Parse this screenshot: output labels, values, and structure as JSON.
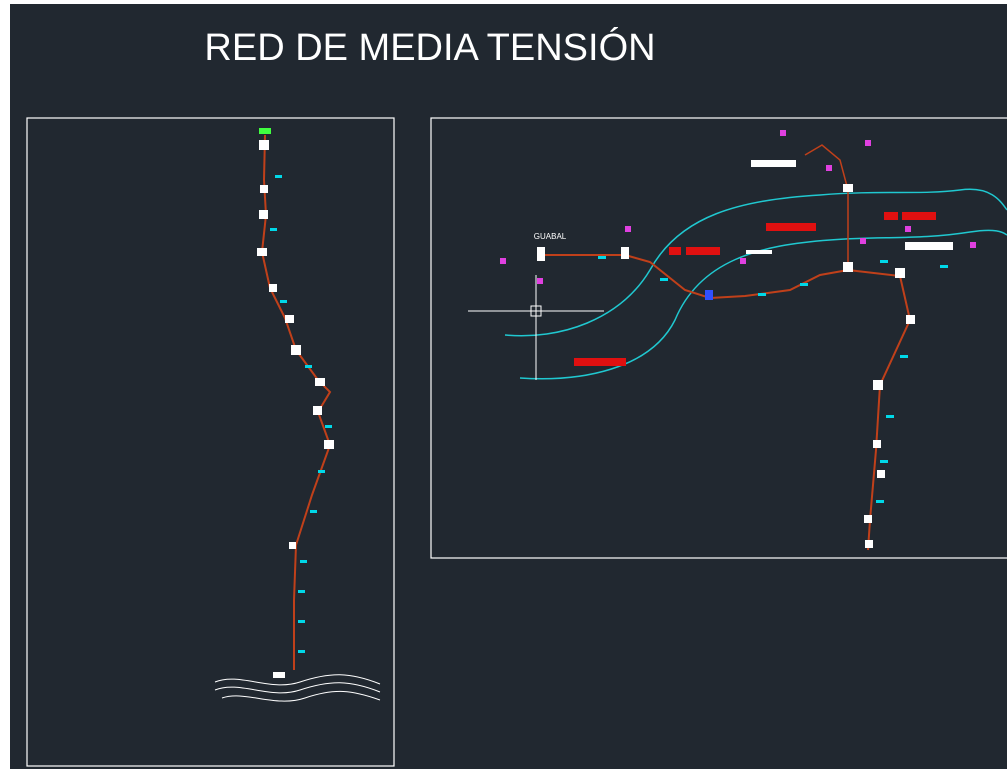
{
  "header": {
    "title": "RED DE MEDIA TENSIÓN"
  },
  "drawing": {
    "place_label": "GUABAL"
  }
}
